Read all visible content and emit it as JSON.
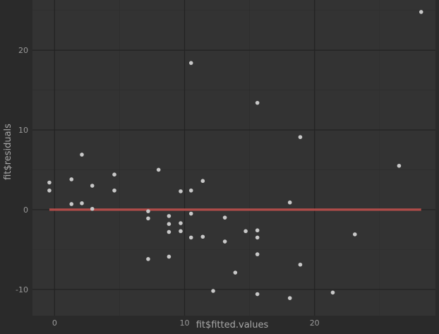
{
  "chart_data": {
    "type": "scatter",
    "title": "",
    "xlabel": "fit$fitted.values",
    "ylabel": "fit$residuals",
    "xlim": [
      -1.7,
      29.3
    ],
    "ylim": [
      -13.3,
      26.3
    ],
    "x_ticks": [
      0,
      10,
      20
    ],
    "x_tick_labels": [
      "0",
      "10",
      "20"
    ],
    "y_ticks": [
      -10,
      0,
      10,
      20
    ],
    "y_tick_labels": [
      "-10",
      "0",
      "10",
      "20"
    ],
    "grid": true,
    "legend": "none",
    "series": [
      {
        "points": [
          [
            -0.4,
            3.4
          ],
          [
            -0.4,
            2.4
          ],
          [
            1.3,
            3.8
          ],
          [
            1.3,
            0.7
          ],
          [
            2.1,
            6.9
          ],
          [
            2.1,
            0.8
          ],
          [
            2.9,
            3.0
          ],
          [
            2.9,
            0.1
          ],
          [
            4.6,
            4.4
          ],
          [
            4.6,
            2.4
          ],
          [
            7.2,
            -0.2
          ],
          [
            7.2,
            -1.1
          ],
          [
            7.2,
            -6.2
          ],
          [
            8.0,
            5.0
          ],
          [
            8.8,
            -0.8
          ],
          [
            8.8,
            -1.8
          ],
          [
            8.8,
            -2.8
          ],
          [
            8.8,
            -5.9
          ],
          [
            9.7,
            2.3
          ],
          [
            9.7,
            -1.7
          ],
          [
            9.7,
            -2.7
          ],
          [
            10.5,
            18.4
          ],
          [
            10.5,
            2.4
          ],
          [
            10.5,
            -0.5
          ],
          [
            10.5,
            -3.5
          ],
          [
            11.4,
            3.6
          ],
          [
            11.4,
            -3.4
          ],
          [
            12.2,
            -10.2
          ],
          [
            13.1,
            -1.0
          ],
          [
            13.1,
            -4.0
          ],
          [
            13.9,
            -7.9
          ],
          [
            14.7,
            -2.7
          ],
          [
            15.6,
            13.4
          ],
          [
            15.6,
            -2.6
          ],
          [
            15.6,
            -3.5
          ],
          [
            15.6,
            -5.6
          ],
          [
            15.6,
            -10.6
          ],
          [
            18.1,
            0.9
          ],
          [
            18.1,
            -11.1
          ],
          [
            18.9,
            9.1
          ],
          [
            18.9,
            -6.9
          ],
          [
            21.4,
            -10.4
          ],
          [
            23.1,
            -3.1
          ],
          [
            26.5,
            5.5
          ],
          [
            28.2,
            24.8
          ]
        ]
      }
    ],
    "reference_line": {
      "y": 0,
      "x_range": [
        -0.4,
        28.2
      ]
    },
    "colors": {
      "figure_background": "#2a2a2a",
      "panel_background": "#333333",
      "grid_major": "#232323",
      "grid_minor": "#2d2d2d",
      "points": "#c8c8c8",
      "reference_line": "#c0504d"
    }
  }
}
